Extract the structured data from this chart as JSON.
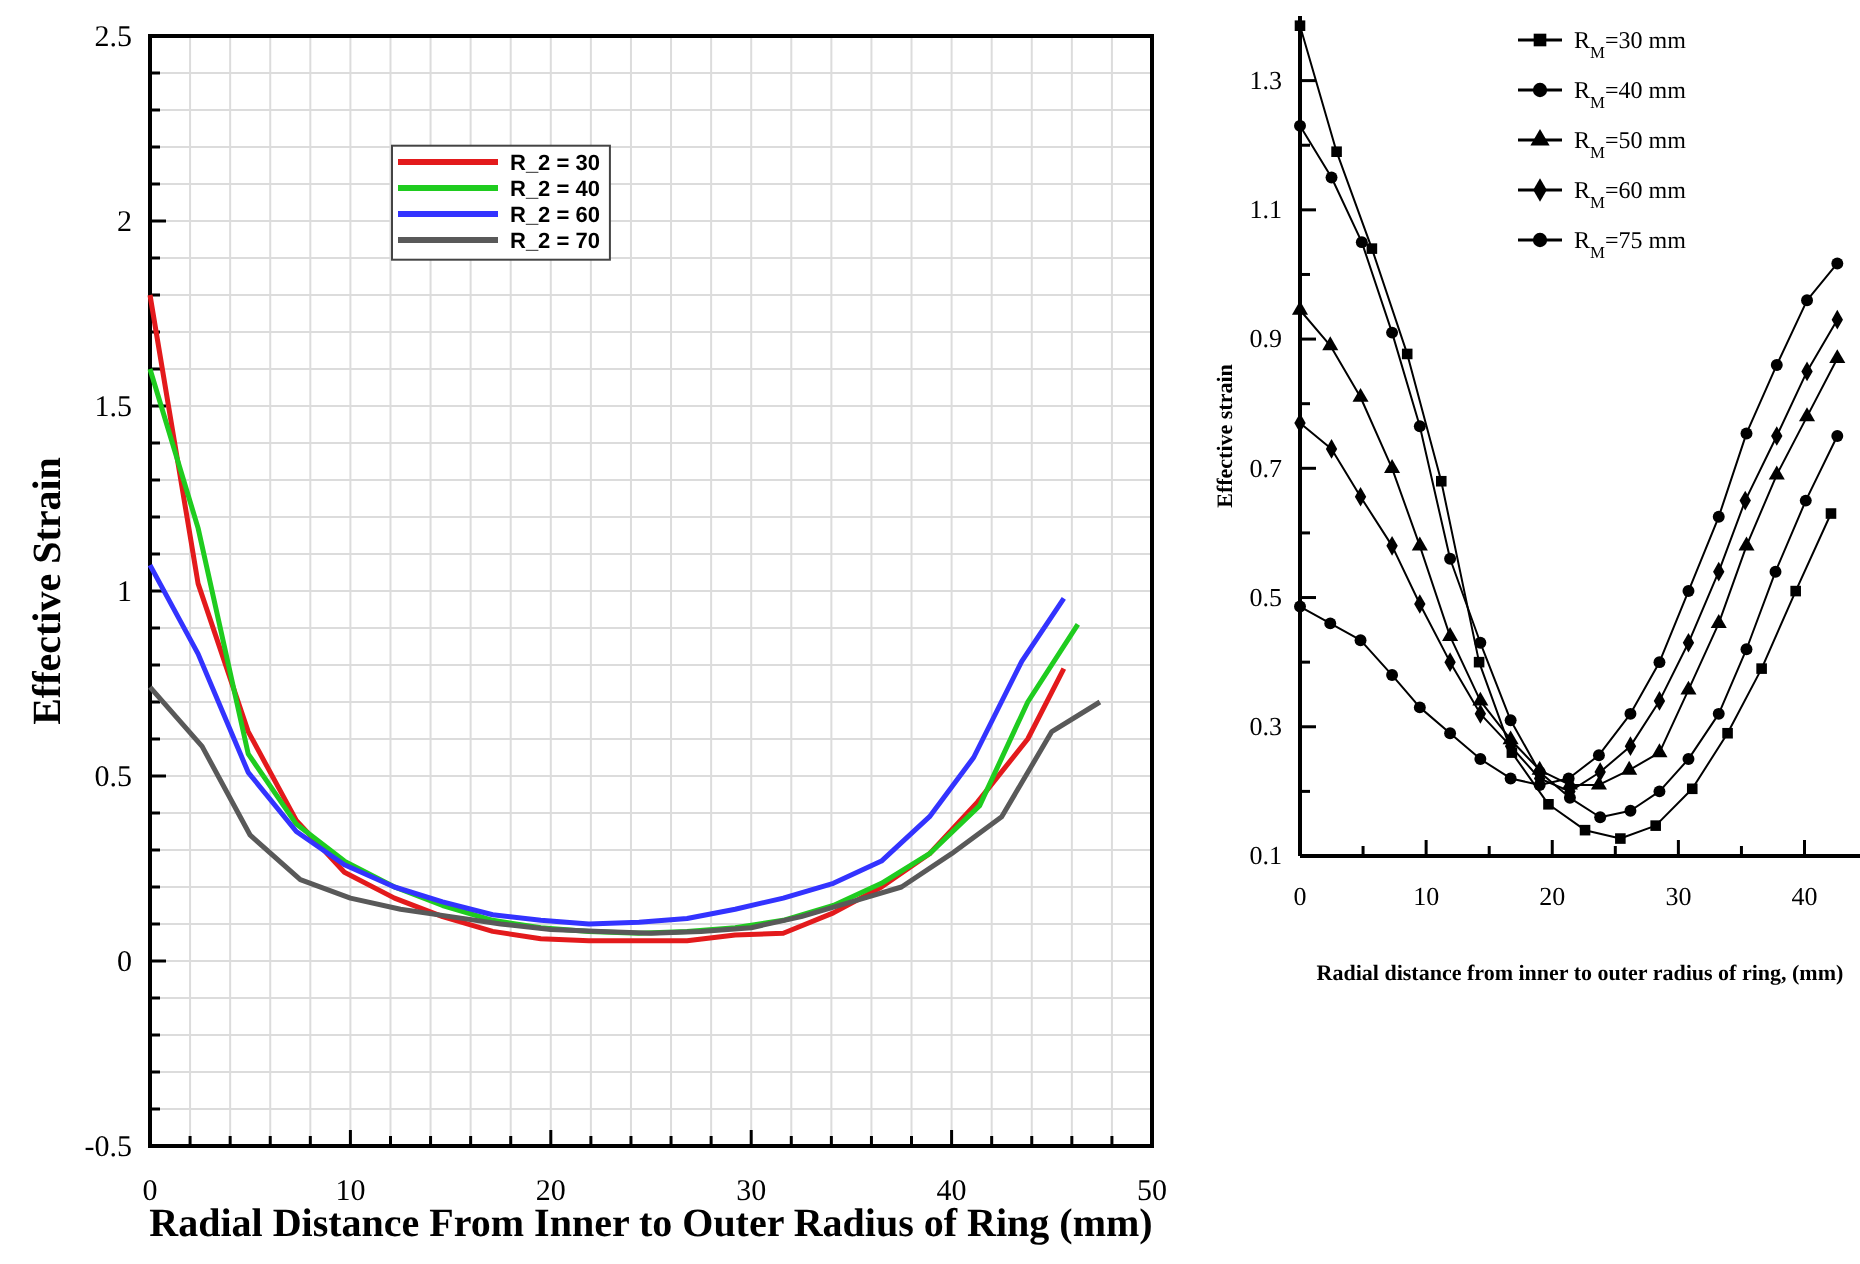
{
  "chart_data": [
    {
      "type": "line",
      "xlabel": "Radial Distance From Inner to Outer Radius of Ring (mm)",
      "ylabel": "Effective Strain",
      "xlim": [
        0,
        50
      ],
      "ylim": [
        -0.5,
        2.5
      ],
      "xticks": [
        0,
        {
          "value": 2,
          "label": null
        },
        {
          "value": 4,
          "label": null
        },
        {
          "value": 6,
          "label": null
        },
        {
          "value": 8,
          "label": null
        },
        10,
        {
          "value": 12,
          "label": null
        },
        {
          "value": 14,
          "label": null
        },
        {
          "value": 16,
          "label": null
        },
        {
          "value": 18,
          "label": null
        },
        20,
        {
          "value": 22,
          "label": null
        },
        {
          "value": 24,
          "label": null
        },
        {
          "value": 26,
          "label": null
        },
        {
          "value": 28,
          "label": null
        },
        30,
        {
          "value": 32,
          "label": null
        },
        {
          "value": 34,
          "label": null
        },
        {
          "value": 36,
          "label": null
        },
        {
          "value": 38,
          "label": null
        },
        40,
        {
          "value": 42,
          "label": null
        },
        {
          "value": 44,
          "label": null
        },
        {
          "value": 46,
          "label": null
        },
        {
          "value": 48,
          "label": null
        },
        50
      ],
      "yticks": [
        -0.5,
        {
          "value": -0.4,
          "label": null
        },
        {
          "value": -0.3,
          "label": null
        },
        {
          "value": -0.2,
          "label": null
        },
        {
          "value": -0.1,
          "label": null
        },
        0,
        {
          "value": 0.1,
          "label": null
        },
        {
          "value": 0.2,
          "label": null
        },
        {
          "value": 0.3,
          "label": null
        },
        {
          "value": 0.4,
          "label": null
        },
        0.5,
        {
          "value": 0.6,
          "label": null
        },
        {
          "value": 0.7,
          "label": null
        },
        {
          "value": 0.8,
          "label": null
        },
        {
          "value": 0.9,
          "label": null
        },
        1,
        {
          "value": 1.1,
          "label": null
        },
        {
          "value": 1.2,
          "label": null
        },
        {
          "value": 1.3,
          "label": null
        },
        {
          "value": 1.4,
          "label": null
        },
        1.5,
        {
          "value": 1.6,
          "label": null
        },
        {
          "value": 1.7,
          "label": null
        },
        {
          "value": 1.8,
          "label": null
        },
        {
          "value": 1.9,
          "label": null
        },
        2,
        {
          "value": 2.1,
          "label": null
        },
        {
          "value": 2.2,
          "label": null
        },
        {
          "value": 2.3,
          "label": null
        },
        {
          "value": 2.4,
          "label": null
        },
        2.5
      ],
      "grid": true,
      "legend": "top",
      "series": [
        {
          "name": "R_2 = 30",
          "color": "#e31a1c",
          "x": [
            0,
            2.4,
            4.9,
            7.3,
            9.7,
            12.2,
            14.6,
            17.1,
            19.5,
            21.9,
            24.4,
            26.8,
            29.2,
            31.6,
            34.1,
            36.5,
            38.9,
            41.3,
            43.8,
            45.6
          ],
          "values": [
            1.8,
            1.02,
            0.62,
            0.38,
            0.24,
            0.17,
            0.12,
            0.08,
            0.06,
            0.055,
            0.055,
            0.055,
            0.07,
            0.075,
            0.13,
            0.2,
            0.29,
            0.43,
            0.6,
            0.79
          ]
        },
        {
          "name": "R_2 = 40",
          "color": "#1fcc1f",
          "x": [
            0,
            2.4,
            4.9,
            7.3,
            9.7,
            12.2,
            14.6,
            17.1,
            19.5,
            21.9,
            24.4,
            26.8,
            29.2,
            31.6,
            34.1,
            36.5,
            38.9,
            41.4,
            43.8,
            46.3
          ],
          "values": [
            1.6,
            1.17,
            0.56,
            0.37,
            0.27,
            0.2,
            0.15,
            0.11,
            0.09,
            0.08,
            0.075,
            0.08,
            0.09,
            0.11,
            0.15,
            0.21,
            0.29,
            0.42,
            0.7,
            0.91
          ]
        },
        {
          "name": "R_2 = 60",
          "color": "#3333ff",
          "x": [
            0,
            2.4,
            4.9,
            7.3,
            9.7,
            12.2,
            14.6,
            17.1,
            19.5,
            21.9,
            24.4,
            26.8,
            29.2,
            31.6,
            34.1,
            36.5,
            38.9,
            41.1,
            43.5,
            45.6
          ],
          "values": [
            1.07,
            0.83,
            0.51,
            0.35,
            0.26,
            0.2,
            0.16,
            0.125,
            0.11,
            0.1,
            0.105,
            0.115,
            0.14,
            0.17,
            0.21,
            0.27,
            0.39,
            0.55,
            0.81,
            0.98
          ]
        },
        {
          "name": "R_2 = 70",
          "color": "#595959",
          "x": [
            0,
            2.6,
            5,
            7.5,
            10,
            12.5,
            15,
            17.5,
            20,
            22.5,
            25,
            27.5,
            30,
            32.5,
            35,
            37.5,
            40,
            42.5,
            45,
            47.4
          ],
          "values": [
            0.74,
            0.58,
            0.34,
            0.22,
            0.17,
            0.14,
            0.12,
            0.1,
            0.085,
            0.08,
            0.075,
            0.08,
            0.09,
            0.12,
            0.16,
            0.2,
            0.29,
            0.39,
            0.62,
            0.7
          ]
        }
      ]
    },
    {
      "type": "line",
      "xlabel": "Radial distance from inner to outer radius of ring, (mm)",
      "ylabel": "Effective strain",
      "xlim": [
        0,
        44.4
      ],
      "ylim": [
        0.1,
        1.4
      ],
      "xticks": [
        0,
        {
          "value": 5,
          "label": null
        },
        10,
        {
          "value": 15,
          "label": null
        },
        20,
        {
          "value": 25,
          "label": null
        },
        30,
        {
          "value": 35,
          "label": null
        },
        40
      ],
      "yticks": [
        0.1,
        {
          "value": 0.2,
          "label": null
        },
        0.3,
        {
          "value": 0.4,
          "label": null
        },
        0.5,
        {
          "value": 0.6,
          "label": null
        },
        0.7,
        {
          "value": 0.8,
          "label": null
        },
        0.9,
        {
          "value": 1.0,
          "label": null
        },
        1.1,
        {
          "value": 1.2,
          "label": null
        },
        1.3
      ],
      "legend": "top",
      "series": [
        {
          "name": "R$_{M}$=30 mm",
          "color": "#000000",
          "marker": "square",
          "x": [
            0,
            2.9,
            5.7,
            8.5,
            11.2,
            14.2,
            16.8,
            19.7,
            22.6,
            25.4,
            28.2,
            31.1,
            33.9,
            36.6,
            39.3,
            42.1
          ],
          "values": [
            1.385,
            1.19,
            1.04,
            0.877,
            0.68,
            0.4,
            0.26,
            0.18,
            0.14,
            0.127,
            0.147,
            0.204,
            0.29,
            0.39,
            0.51,
            0.63
          ]
        },
        {
          "name": "R$_{M}$=40 mm",
          "color": "#000000",
          "marker": "circle",
          "x": [
            0,
            2.5,
            4.9,
            7.3,
            9.5,
            11.9,
            14.3,
            16.7,
            19,
            21.4,
            23.8,
            26.2,
            28.5,
            30.8,
            33.2,
            35.4,
            37.7,
            40.1,
            42.6
          ],
          "values": [
            1.23,
            1.15,
            1.05,
            0.91,
            0.765,
            0.56,
            0.43,
            0.31,
            0.23,
            0.19,
            0.16,
            0.17,
            0.2,
            0.25,
            0.32,
            0.42,
            0.54,
            0.65,
            0.75
          ]
        },
        {
          "name": "R$_{M}$=50 mm",
          "color": "#000000",
          "marker": "triangle",
          "x": [
            0,
            2.4,
            4.8,
            7.3,
            9.5,
            11.9,
            14.3,
            16.7,
            19,
            21.4,
            23.7,
            26.1,
            28.5,
            30.8,
            33.2,
            35.4,
            37.8,
            40.2,
            42.6
          ],
          "values": [
            0.945,
            0.89,
            0.81,
            0.7,
            0.58,
            0.44,
            0.34,
            0.28,
            0.233,
            0.21,
            0.21,
            0.233,
            0.26,
            0.357,
            0.46,
            0.58,
            0.69,
            0.78,
            0.87
          ]
        },
        {
          "name": "R$_{M}$=60 mm",
          "color": "#000000",
          "marker": "diamond",
          "x": [
            0,
            2.5,
            4.8,
            7.3,
            9.5,
            11.9,
            14.3,
            16.7,
            19,
            21.4,
            23.8,
            26.2,
            28.5,
            30.8,
            33.2,
            35.3,
            37.8,
            40.2,
            42.6
          ],
          "values": [
            0.77,
            0.73,
            0.656,
            0.58,
            0.49,
            0.4,
            0.32,
            0.27,
            0.22,
            0.2,
            0.23,
            0.27,
            0.34,
            0.43,
            0.54,
            0.65,
            0.75,
            0.85,
            0.93
          ]
        },
        {
          "name": "R$_{M}$=75 mm",
          "color": "#000000",
          "marker": "circle",
          "x": [
            0,
            2.4,
            4.8,
            7.3,
            9.5,
            11.9,
            14.3,
            16.7,
            19,
            21.3,
            23.7,
            26.2,
            28.5,
            30.8,
            33.2,
            35.4,
            37.8,
            40.2,
            42.6
          ],
          "values": [
            0.486,
            0.46,
            0.434,
            0.38,
            0.33,
            0.29,
            0.25,
            0.22,
            0.21,
            0.22,
            0.256,
            0.32,
            0.4,
            0.51,
            0.625,
            0.754,
            0.86,
            0.96,
            1.017
          ]
        }
      ]
    }
  ]
}
